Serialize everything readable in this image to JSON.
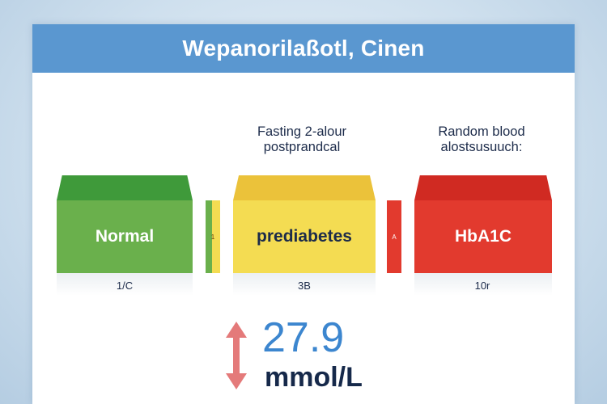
{
  "header": {
    "title": "Wepanorilaßotl, Cinen"
  },
  "captions": {
    "middle": [
      "Fasting 2-alour",
      "postprandcal"
    ],
    "right": [
      "Random blood",
      "alostsusuuch:"
    ]
  },
  "boxes": [
    {
      "label": "Normal",
      "tick": "1/C",
      "color": "#6ab04c",
      "top_color": "#3f9a3a",
      "text_color": "#ffffff"
    },
    {
      "label": "prediabetes",
      "tick": "3B",
      "color": "#f4dc52",
      "top_color": "#ebc23a",
      "text_color": "#1c2b4a"
    },
    {
      "label": "HbA1C",
      "tick": "10r",
      "color": "#e23a2e",
      "top_color": "#d02a22",
      "text_color": "#ffffff"
    }
  ],
  "separators": [
    {
      "label": "1"
    },
    {
      "label": "A"
    }
  ],
  "reading": {
    "value": "27.9",
    "unit": "mmol/L"
  },
  "colors": {
    "header": "#5a97d0",
    "arrow": "#e47a7a",
    "value": "#3c86cf"
  }
}
